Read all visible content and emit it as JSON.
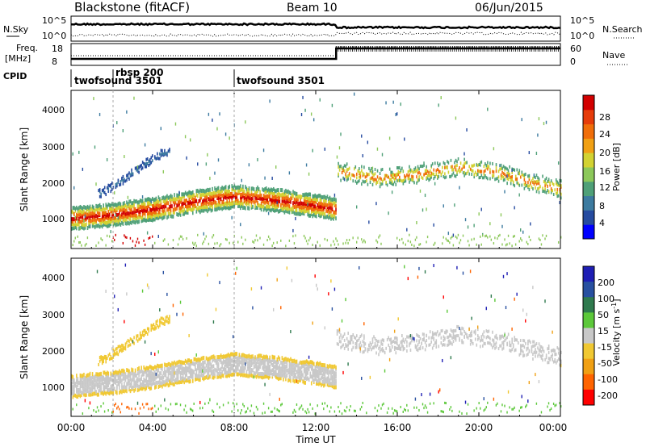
{
  "header": {
    "title": "Blackstone (fitACF)",
    "beam": "Beam 10",
    "date": "06/Jun/2015"
  },
  "noise_panel": {
    "left_label": "N.Sky",
    "left_ticks": [
      "10^5",
      "10^0"
    ],
    "right_label": "N.Search",
    "right_ticks": [
      "10^5",
      "10^0"
    ]
  },
  "freq_panel": {
    "left_label_1": "Freq.",
    "left_label_2": "[MHz]",
    "left_ticks": [
      "18",
      "8"
    ],
    "right_label": "Nave",
    "right_ticks": [
      "60",
      "0"
    ]
  },
  "cpid": {
    "label": "CPID",
    "entries": [
      "twofsound 3501",
      "rbsp 200",
      "twofsound 3501"
    ]
  },
  "power_panel": {
    "ylabel": "Slant Range [km]",
    "yticks": [
      "4000",
      "3000",
      "2000",
      "1000"
    ],
    "colorbar_label": "Power [dB]",
    "colorbar_ticks": [
      "28",
      "24",
      "20",
      "16",
      "12",
      "8",
      "4"
    ]
  },
  "velocity_panel": {
    "ylabel": "Slant Range [km]",
    "yticks": [
      "4000",
      "3000",
      "2000",
      "1000"
    ],
    "colorbar_label": "Velocity [m s",
    "colorbar_label_sup": "-1",
    "colorbar_label_end": "]",
    "colorbar_ticks": [
      "200",
      "100",
      "50",
      "15",
      "-15",
      "-50",
      "-100",
      "-200"
    ]
  },
  "xaxis": {
    "label": "Time UT",
    "ticks": [
      "00:00",
      "04:00",
      "08:00",
      "12:00",
      "16:00",
      "20:00",
      "00:00"
    ]
  },
  "colors": {
    "power_scale": [
      "#0000ff",
      "#264ba0",
      "#3d7ba0",
      "#4fa078",
      "#8cc85a",
      "#d2d232",
      "#f0a014",
      "#f06e0a",
      "#e63c0a",
      "#d20000"
    ],
    "velocity_scale": [
      "#1e1eb4",
      "#2850a0",
      "#2f7a4e",
      "#5cc83a",
      "#c8c8c8",
      "#f0c832",
      "#f0a014",
      "#ff6400",
      "#ff0000"
    ]
  },
  "chart_data": [
    {
      "type": "heatmap",
      "title": "Power",
      "xlabel": "Time UT",
      "ylabel": "Slant Range [km]",
      "xlim": [
        "00:00",
        "24:00"
      ],
      "ylim": [
        180,
        4500
      ],
      "colorbar": {
        "label": "Power [dB]",
        "range": [
          0,
          30
        ]
      },
      "features": [
        {
          "name": "main_band",
          "time_h": [
            0,
            2,
            4,
            6,
            8,
            10,
            12,
            13
          ],
          "range_km": [
            1000,
            1100,
            1250,
            1450,
            1600,
            1500,
            1350,
            1250
          ],
          "power_db": 26
        },
        {
          "name": "upper_band",
          "time_h": [
            1.5,
            2.5,
            3.5,
            4.5
          ],
          "range_km": [
            1700,
            2050,
            2450,
            2800
          ],
          "power_db": 8
        },
        {
          "name": "evening_band",
          "time_h": [
            13,
            15,
            17,
            19,
            21,
            22.5,
            24
          ],
          "range_km": [
            2300,
            2100,
            2200,
            2400,
            2250,
            2000,
            1800
          ],
          "power_db": 18
        }
      ]
    },
    {
      "type": "heatmap",
      "title": "Velocity",
      "xlabel": "Time UT",
      "ylabel": "Slant Range [km]",
      "xlim": [
        "00:00",
        "24:00"
      ],
      "ylim": [
        180,
        4500
      ],
      "colorbar": {
        "label": "Velocity [m s-1]",
        "range": [
          -250,
          250
        ]
      },
      "features": [
        {
          "name": "main_band",
          "time_h": [
            0,
            2,
            4,
            6,
            8,
            10,
            12,
            13
          ],
          "range_km": [
            1000,
            1100,
            1250,
            1450,
            1600,
            1500,
            1350,
            1250
          ],
          "velocity": 0
        },
        {
          "name": "ascending_band",
          "time_h": [
            1.5,
            2.5,
            3.5,
            4.5
          ],
          "range_km": [
            1700,
            2050,
            2450,
            2800
          ],
          "velocity": -60
        },
        {
          "name": "ground_scatter_evening",
          "time_h": [
            13,
            15,
            17,
            19,
            21,
            22.5,
            24
          ],
          "range_km": [
            2300,
            2100,
            2200,
            2400,
            2250,
            2000,
            1800
          ],
          "velocity": 0
        }
      ]
    }
  ]
}
